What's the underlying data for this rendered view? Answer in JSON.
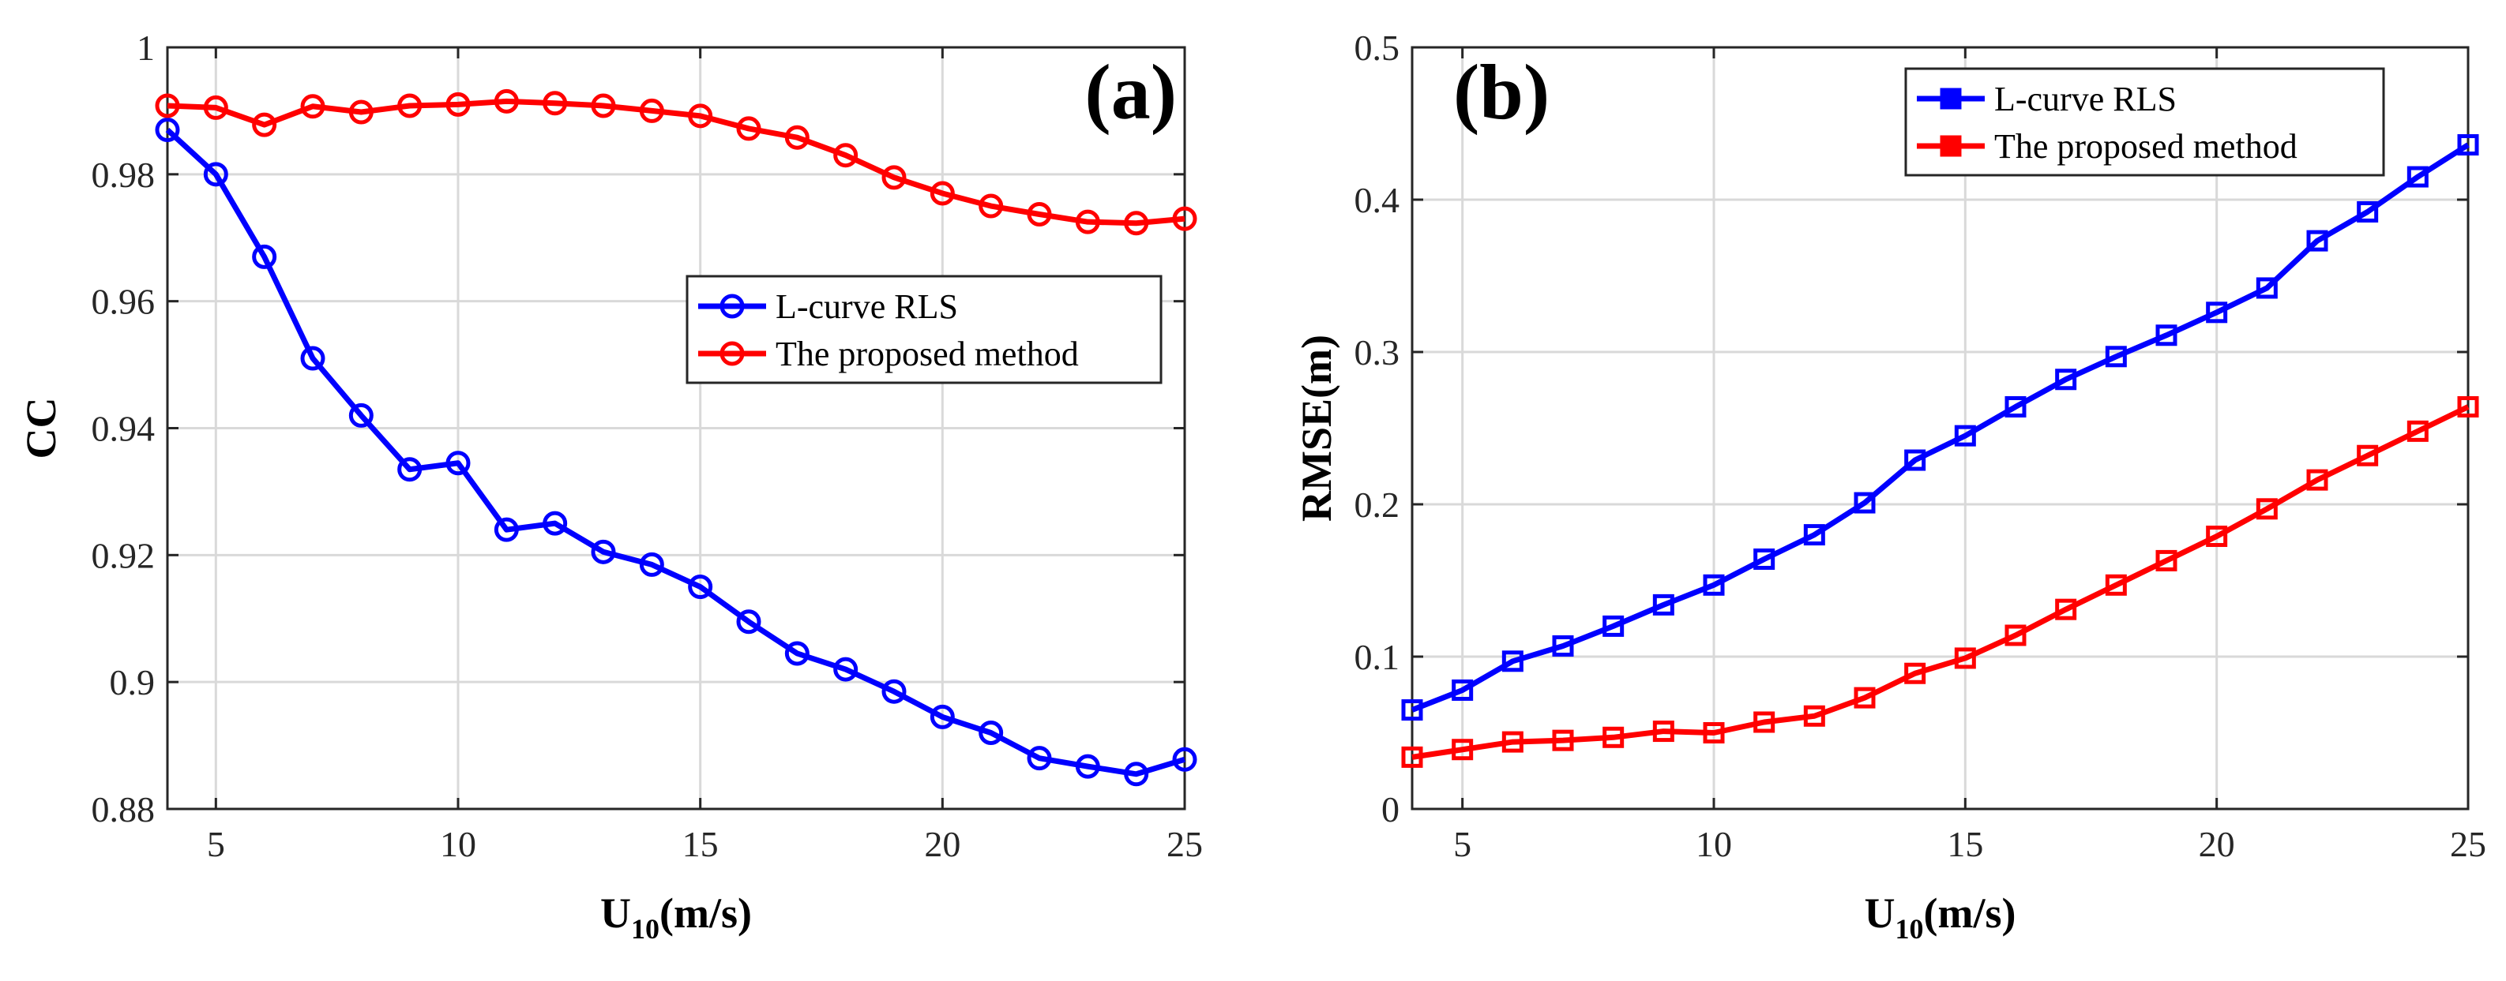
{
  "chart_data": [
    {
      "type": "line",
      "panel_label": "(a)",
      "xlabel": "U",
      "xlabel_subscript": "10",
      "xlabel_suffix": "(m/s)",
      "ylabel": "CC",
      "xlim": [
        4,
        25
      ],
      "ylim": [
        0.88,
        1
      ],
      "xticks": [
        5,
        10,
        15,
        20,
        25
      ],
      "yticks": [
        0.88,
        0.9,
        0.92,
        0.94,
        0.96,
        0.98,
        1
      ],
      "ytick_labels": [
        "0.88",
        "0.9",
        "0.92",
        "0.94",
        "0.96",
        "0.98",
        "1"
      ],
      "grid": true,
      "legend_position": "center-right",
      "marker": "circle",
      "x": [
        4,
        5,
        6,
        7,
        8,
        9,
        10,
        11,
        12,
        13,
        14,
        15,
        16,
        17,
        18,
        19,
        20,
        21,
        22,
        23,
        24,
        25
      ],
      "series": [
        {
          "name": "L-curve RLS",
          "color": "#0000ff",
          "values": [
            0.987,
            0.98,
            0.967,
            0.951,
            0.942,
            0.9335,
            0.9345,
            0.924,
            0.925,
            0.9205,
            0.9185,
            0.915,
            0.9095,
            0.9045,
            0.902,
            0.8985,
            0.8945,
            0.892,
            0.888,
            0.8867,
            0.8855,
            0.8878
          ]
        },
        {
          "name": "The proposed method",
          "color": "#ff0000",
          "values": [
            0.9908,
            0.9905,
            0.9878,
            0.9907,
            0.9898,
            0.9908,
            0.991,
            0.9915,
            0.9912,
            0.9908,
            0.99,
            0.9892,
            0.9872,
            0.9858,
            0.983,
            0.9795,
            0.977,
            0.975,
            0.9737,
            0.9725,
            0.9723,
            0.973
          ]
        }
      ]
    },
    {
      "type": "line",
      "panel_label": "(b)",
      "xlabel": "U",
      "xlabel_subscript": "10",
      "xlabel_suffix": "(m/s)",
      "ylabel": "RMSE(m)",
      "xlim": [
        4,
        25
      ],
      "ylim": [
        0,
        0.5
      ],
      "xticks": [
        5,
        10,
        15,
        20,
        25
      ],
      "yticks": [
        0,
        0.1,
        0.2,
        0.3,
        0.4,
        0.5
      ],
      "ytick_labels": [
        "0",
        "0.1",
        "0.2",
        "0.3",
        "0.4",
        "0.5"
      ],
      "grid": true,
      "legend_position": "top-right",
      "marker": "square",
      "x": [
        4,
        5,
        6,
        7,
        8,
        9,
        10,
        11,
        12,
        13,
        14,
        15,
        16,
        17,
        18,
        19,
        20,
        21,
        22,
        23,
        24,
        25
      ],
      "series": [
        {
          "name": "L-curve RLS",
          "color": "#0000ff",
          "values": [
            0.065,
            0.078,
            0.097,
            0.107,
            0.12,
            0.134,
            0.147,
            0.164,
            0.18,
            0.201,
            0.229,
            0.245,
            0.264,
            0.282,
            0.297,
            0.311,
            0.326,
            0.342,
            0.373,
            0.392,
            0.415,
            0.436
          ]
        },
        {
          "name": "The proposed method",
          "color": "#ff0000",
          "values": [
            0.034,
            0.039,
            0.044,
            0.045,
            0.047,
            0.051,
            0.05,
            0.057,
            0.061,
            0.073,
            0.089,
            0.099,
            0.114,
            0.131,
            0.147,
            0.163,
            0.179,
            0.197,
            0.216,
            0.232,
            0.248,
            0.264
          ]
        }
      ]
    }
  ]
}
